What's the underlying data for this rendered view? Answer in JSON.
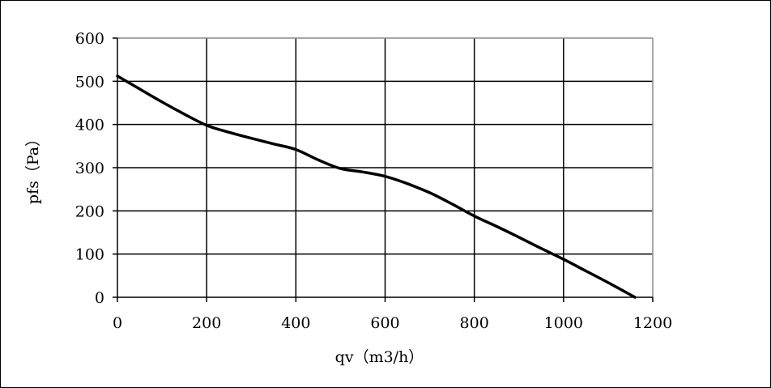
{
  "chart_data": {
    "type": "line",
    "xlabel": "qv（m3/h）",
    "ylabel": "pfs（Pa）",
    "xlim": [
      0,
      1200
    ],
    "ylim": [
      0,
      600
    ],
    "x_ticks": [
      0,
      200,
      400,
      600,
      800,
      1000,
      1200
    ],
    "y_ticks": [
      0,
      100,
      200,
      300,
      400,
      500,
      600
    ],
    "x_tick_labels": [
      "0",
      "200",
      "400",
      "600",
      "800",
      "1000",
      "1200"
    ],
    "y_tick_labels": [
      "0",
      "100",
      "200",
      "300",
      "400",
      "500",
      "600"
    ],
    "grid": true,
    "series": [
      {
        "x": [
          0,
          50,
          100,
          150,
          200,
          250,
          300,
          350,
          400,
          450,
          500,
          550,
          600,
          650,
          700,
          750,
          800,
          850,
          900,
          950,
          1000,
          1050,
          1100,
          1160
        ],
        "y": [
          512,
          482,
          452,
          424,
          398,
          382,
          368,
          355,
          342,
          318,
          298,
          290,
          280,
          263,
          242,
          216,
          188,
          164,
          139,
          113,
          88,
          61,
          34,
          0
        ],
        "color": "#000000"
      }
    ]
  }
}
